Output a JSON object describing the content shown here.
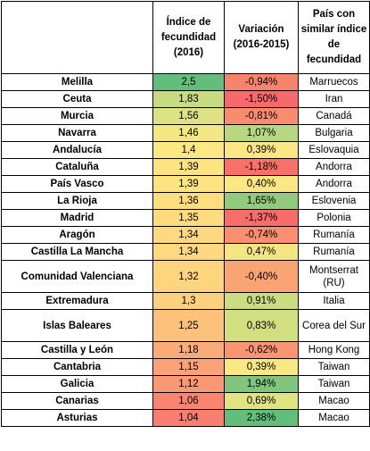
{
  "headers": {
    "region": "",
    "indice": "Índice de fecundidad (2016)",
    "variacion": "Variación (2016-2015)",
    "pais": "País con similar índice de fecundidad"
  },
  "rows": [
    {
      "region": "Melilla",
      "indice": "2,5",
      "variacion": "-0,94%",
      "pais": "Marruecos",
      "indice_color": "#63be7b",
      "var_color": "#f8836c"
    },
    {
      "region": "Ceuta",
      "indice": "1,83",
      "variacion": "-1,50%",
      "pais": "Iran",
      "indice_color": "#c7db80",
      "var_color": "#f8696b"
    },
    {
      "region": "Murcia",
      "indice": "1,56",
      "variacion": "-0,81%",
      "pais": "Canadá",
      "indice_color": "#dfe282",
      "var_color": "#f98b6f"
    },
    {
      "region": "Navarra",
      "indice": "1,46",
      "variacion": "1,07%",
      "pais": "Bulgaria",
      "indice_color": "#f2e783",
      "var_color": "#b8d780"
    },
    {
      "region": "Andalucía",
      "indice": "1,4",
      "variacion": "0,39%",
      "pais": "Eslovaquia",
      "indice_color": "#fde883",
      "var_color": "#fbe784"
    },
    {
      "region": "Cataluña",
      "indice": "1,39",
      "variacion": "-1,18%",
      "pais": "Andorra",
      "indice_color": "#fee381",
      "var_color": "#f87169"
    },
    {
      "region": "País Vasco",
      "indice": "1,39",
      "variacion": "0,40%",
      "pais": "Andorra",
      "indice_color": "#fee381",
      "var_color": "#fbe784"
    },
    {
      "region": "La Rioja",
      "indice": "1,36",
      "variacion": "1,65%",
      "pais": "Eslovenia",
      "indice_color": "#fedd7f",
      "var_color": "#93cb7e"
    },
    {
      "region": "Madrid",
      "indice": "1,35",
      "variacion": "-1,37%",
      "pais": "Polonia",
      "indice_color": "#fedb7f",
      "var_color": "#f86c6a"
    },
    {
      "region": "Aragón",
      "indice": "1,34",
      "variacion": "-0,74%",
      "pais": "Rumanía",
      "indice_color": "#fed97f",
      "var_color": "#f98f70"
    },
    {
      "region": "Castilla La Mancha",
      "indice": "1,34",
      "variacion": "0,47%",
      "pais": "Rumanía",
      "indice_color": "#fed97f",
      "var_color": "#f4e583"
    },
    {
      "region": "Comunidad Valenciana",
      "indice": "1,32",
      "variacion": "-0,40%",
      "pais": "Montserrat (RU)",
      "indice_color": "#fed47e",
      "var_color": "#faa474"
    },
    {
      "region": "Extremadura",
      "indice": "1,3",
      "variacion": "0,91%",
      "pais": "Italia",
      "indice_color": "#fdd07e",
      "var_color": "#cbdd81"
    },
    {
      "region": "Islas Baleares",
      "indice": "1,25",
      "variacion": "0,83%",
      "pais": "Corea del Sur",
      "indice_color": "#fcc17b",
      "var_color": "#d2df81"
    },
    {
      "region": "Castilla y León",
      "indice": "1,18",
      "variacion": "-0,62%",
      "pais": "Hong Kong",
      "indice_color": "#fbab77",
      "var_color": "#fa9571"
    },
    {
      "region": "Cantabria",
      "indice": "1,15",
      "variacion": "0,39%",
      "pais": "Taiwan",
      "indice_color": "#fba276",
      "var_color": "#fbe784"
    },
    {
      "region": "Galicia",
      "indice": "1,12",
      "variacion": "1,94%",
      "pais": "Taiwan",
      "indice_color": "#fa9874",
      "var_color": "#7fc57d"
    },
    {
      "region": "Canarias",
      "indice": "1,06",
      "variacion": "0,69%",
      "pais": "Macao",
      "indice_color": "#f98570",
      "var_color": "#e0e382"
    },
    {
      "region": "Asturias",
      "indice": "1,04",
      "variacion": "2,38%",
      "pais": "Macao",
      "indice_color": "#f87f6f",
      "var_color": "#63be7b"
    }
  ]
}
